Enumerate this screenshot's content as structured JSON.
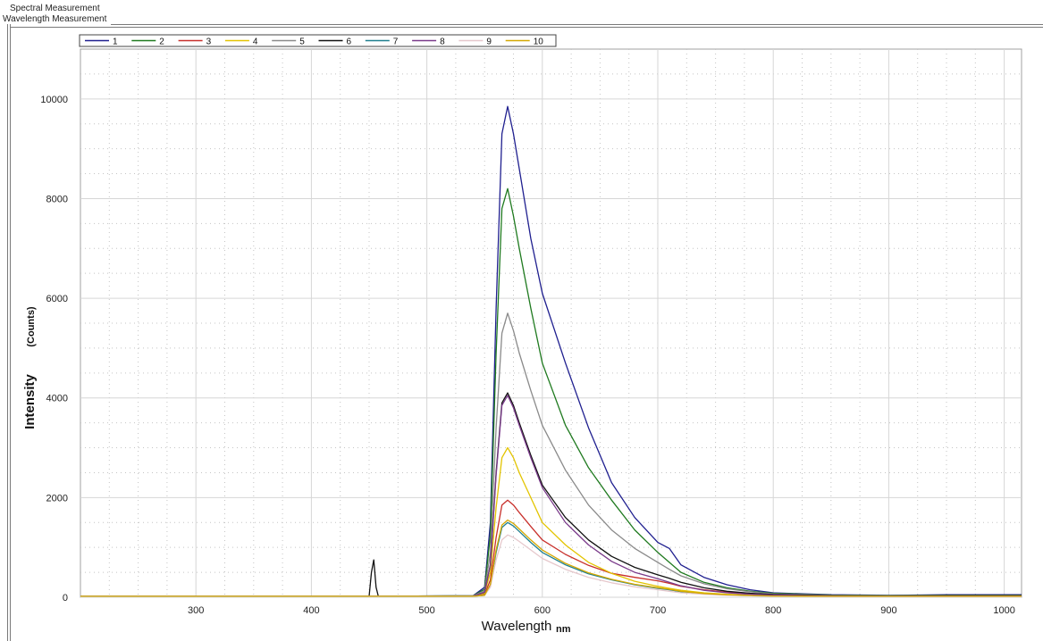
{
  "window": {
    "tab_title": "Spectral Measurement",
    "panel_title": "Wavelength Measurement"
  },
  "chart_data": {
    "type": "line",
    "x_label": "Wavelength",
    "x_unit": "nm",
    "y_label": "Intensity",
    "y_unit": "(Counts)",
    "xlim": [
      200,
      1015
    ],
    "ylim": [
      0,
      11000
    ],
    "x_ticks": [
      300,
      400,
      500,
      600,
      700,
      800,
      900,
      1000
    ],
    "y_ticks": [
      0,
      2000,
      4000,
      6000,
      8000,
      10000
    ],
    "grid": true,
    "legend_position": "top-left",
    "x": [
      200,
      450,
      452,
      454,
      456,
      458,
      540,
      550,
      555,
      560,
      565,
      570,
      575,
      580,
      590,
      600,
      620,
      640,
      660,
      680,
      700,
      710,
      720,
      740,
      760,
      780,
      800,
      850,
      900,
      950,
      1015
    ],
    "series": [
      {
        "name": "1",
        "color": "#1f1f8f",
        "values": [
          20,
          20,
          20,
          20,
          20,
          20,
          30,
          200,
          1500,
          5800,
          9300,
          9850,
          9300,
          8600,
          7200,
          6100,
          4700,
          3400,
          2300,
          1600,
          1100,
          980,
          650,
          400,
          250,
          150,
          90,
          50,
          40,
          50,
          50
        ]
      },
      {
        "name": "2",
        "color": "#1f7a1f",
        "values": [
          20,
          20,
          20,
          20,
          20,
          20,
          30,
          160,
          1250,
          4900,
          7800,
          8200,
          7650,
          7000,
          5800,
          4700,
          3450,
          2600,
          1950,
          1350,
          900,
          700,
          500,
          300,
          190,
          120,
          80,
          45,
          35,
          40,
          40
        ]
      },
      {
        "name": "3",
        "color": "#c8302b",
        "values": [
          20,
          20,
          20,
          20,
          20,
          20,
          20,
          60,
          350,
          1200,
          1850,
          1950,
          1850,
          1700,
          1420,
          1150,
          860,
          640,
          480,
          400,
          330,
          280,
          220,
          150,
          100,
          70,
          50,
          30,
          25,
          30,
          30
        ]
      },
      {
        "name": "4",
        "color": "#e3c400",
        "values": [
          20,
          20,
          20,
          20,
          20,
          20,
          20,
          80,
          500,
          1800,
          2800,
          3000,
          2800,
          2500,
          2000,
          1500,
          1050,
          700,
          480,
          320,
          220,
          180,
          140,
          90,
          60,
          40,
          30,
          20,
          20,
          25,
          25
        ]
      },
      {
        "name": "5",
        "color": "#8a8a8a",
        "values": [
          20,
          20,
          20,
          20,
          20,
          20,
          30,
          130,
          900,
          3400,
          5300,
          5700,
          5350,
          4900,
          4150,
          3450,
          2550,
          1850,
          1350,
          980,
          700,
          560,
          430,
          270,
          170,
          110,
          70,
          40,
          30,
          35,
          35
        ]
      },
      {
        "name": "6",
        "color": "#111111",
        "values": [
          20,
          20,
          500,
          750,
          200,
          20,
          20,
          100,
          650,
          2500,
          3900,
          4100,
          3850,
          3500,
          2850,
          2250,
          1600,
          1150,
          820,
          600,
          450,
          380,
          300,
          190,
          120,
          80,
          55,
          30,
          25,
          30,
          30
        ]
      },
      {
        "name": "7",
        "color": "#1f7f8f",
        "values": [
          20,
          20,
          20,
          20,
          20,
          20,
          20,
          40,
          250,
          900,
          1400,
          1500,
          1430,
          1320,
          1100,
          900,
          650,
          470,
          350,
          250,
          180,
          150,
          110,
          70,
          45,
          30,
          25,
          20,
          20,
          20,
          20
        ]
      },
      {
        "name": "8",
        "color": "#7a3a8a",
        "values": [
          20,
          20,
          20,
          20,
          20,
          20,
          20,
          100,
          650,
          2450,
          3850,
          4050,
          3800,
          3450,
          2800,
          2200,
          1500,
          1050,
          720,
          500,
          370,
          300,
          230,
          140,
          90,
          60,
          45,
          25,
          20,
          25,
          25
        ]
      },
      {
        "name": "9",
        "color": "#e6c8cc",
        "values": [
          20,
          20,
          20,
          20,
          20,
          20,
          20,
          40,
          200,
          750,
          1150,
          1250,
          1200,
          1120,
          950,
          780,
          560,
          400,
          290,
          210,
          150,
          120,
          90,
          60,
          40,
          30,
          20,
          15,
          15,
          15,
          15
        ]
      },
      {
        "name": "10",
        "color": "#d4a800",
        "values": [
          20,
          20,
          20,
          20,
          20,
          20,
          20,
          40,
          260,
          950,
          1450,
          1550,
          1480,
          1370,
          1150,
          950,
          680,
          490,
          360,
          260,
          190,
          160,
          120,
          75,
          50,
          35,
          25,
          20,
          20,
          20,
          20
        ]
      }
    ]
  }
}
